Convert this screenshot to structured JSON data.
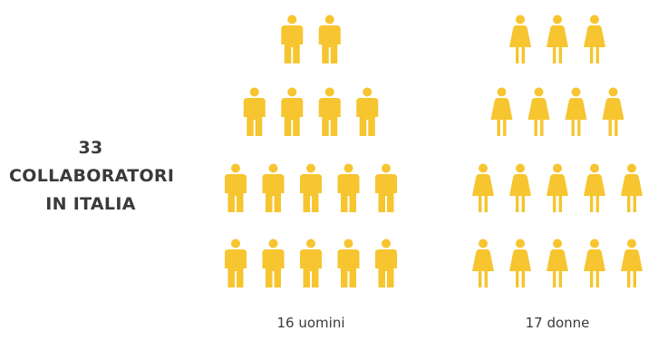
{
  "colors": {
    "figure": "#F6C52F",
    "text": "#3a3a3a",
    "background": "#ffffff"
  },
  "total": {
    "lines": [
      "33",
      "COLLABORATORI",
      "IN ITALIA"
    ]
  },
  "groups": [
    {
      "id": "men",
      "icon": "man-icon",
      "count": 16,
      "caption": "16 uomini",
      "rows": [
        2,
        4,
        5,
        5
      ]
    },
    {
      "id": "women",
      "icon": "woman-icon",
      "count": 17,
      "caption": "17 donne",
      "rows": [
        3,
        4,
        5,
        5
      ]
    }
  ]
}
